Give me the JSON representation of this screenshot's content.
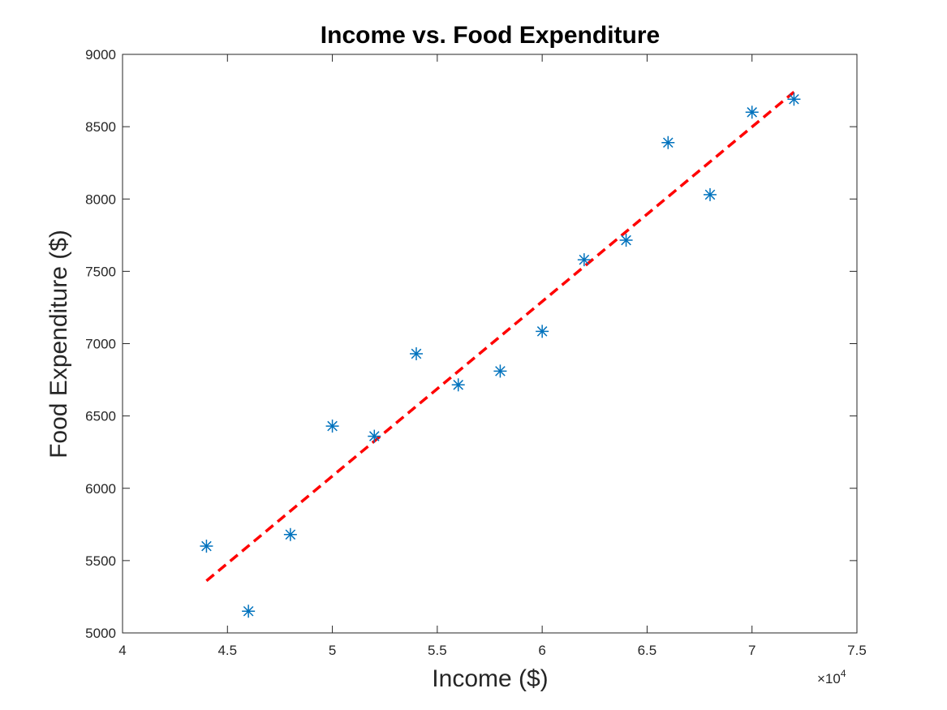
{
  "chart_data": {
    "type": "scatter",
    "title": "Income vs. Food Expenditure",
    "xlabel": "Income ($)",
    "ylabel": "Food Expenditure ($)",
    "x_multiplier": {
      "base": "×10",
      "exponent": "4"
    },
    "xlim": [
      4,
      7.5
    ],
    "ylim": [
      5000,
      9000
    ],
    "xticks": [
      4,
      4.5,
      5,
      5.5,
      6,
      6.5,
      7,
      7.5
    ],
    "yticks": [
      5000,
      5500,
      6000,
      6500,
      7000,
      7500,
      8000,
      8500,
      9000
    ],
    "grid": false,
    "series": [
      {
        "marker": "asterisk",
        "color": "#0072BD",
        "x": [
          4.4,
          4.6,
          4.8,
          5.0,
          5.2,
          5.4,
          5.6,
          5.8,
          6.0,
          6.2,
          6.4,
          6.6,
          6.8,
          7.0,
          7.2
        ],
        "y": [
          5600,
          5150,
          5680,
          6430,
          6360,
          6930,
          6715,
          6810,
          7085,
          7580,
          7715,
          8390,
          8030,
          8600,
          8690
        ]
      }
    ],
    "fit_line": {
      "style": "dashed",
      "color": "#FF0000",
      "x": [
        4.4,
        7.2
      ],
      "y": [
        5360,
        8740
      ]
    }
  }
}
